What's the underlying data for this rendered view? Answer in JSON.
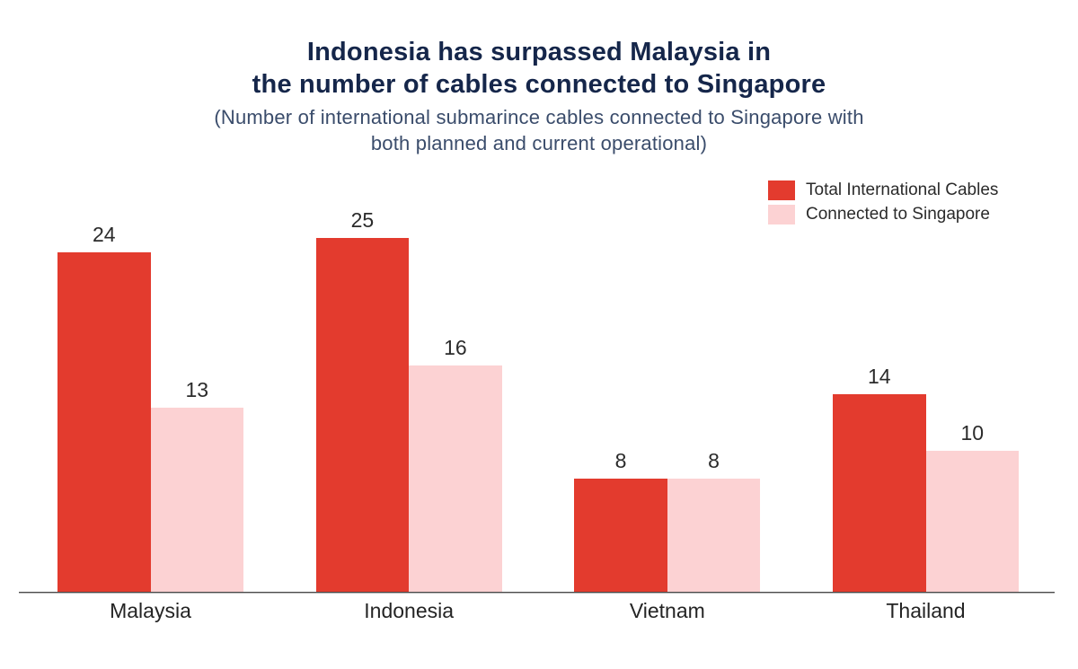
{
  "header": {
    "title_line1": "Indonesia has surpassed Malaysia in",
    "title_line2": "the number of cables connected to Singapore",
    "subtitle_line1": "(Number of international submarince cables connected to Singapore with",
    "subtitle_line2": "both planned and current operational)"
  },
  "legend": {
    "items": [
      {
        "label": "Total International Cables",
        "color": "#e33b2e"
      },
      {
        "label": "Connected to Singapore",
        "color": "#fcd2d3"
      }
    ]
  },
  "chart_data": {
    "type": "bar",
    "title": "Indonesia has surpassed Malaysia in the number of cables connected to Singapore",
    "subtitle": "(Number of international submarince cables connected to Singapore with both planned and current operational)",
    "categories": [
      "Malaysia",
      "Indonesia",
      "Vietnam",
      "Thailand"
    ],
    "series": [
      {
        "name": "Total International Cables",
        "key": "total-international-cables",
        "color": "#e33b2e",
        "values": [
          24,
          25,
          8,
          14
        ]
      },
      {
        "name": "Connected to Singapore",
        "key": "connected-to-singapore",
        "color": "#fcd2d3",
        "values": [
          13,
          16,
          8,
          10
        ]
      }
    ],
    "ylim": [
      0,
      25
    ],
    "grid": false,
    "value_labels": true,
    "legend_position": "top-right",
    "axis_line_color": "#4a4a4a",
    "title_color": "#15264a",
    "subtitle_color": "#3a4c6b",
    "label_color": "#2b2b2b"
  }
}
